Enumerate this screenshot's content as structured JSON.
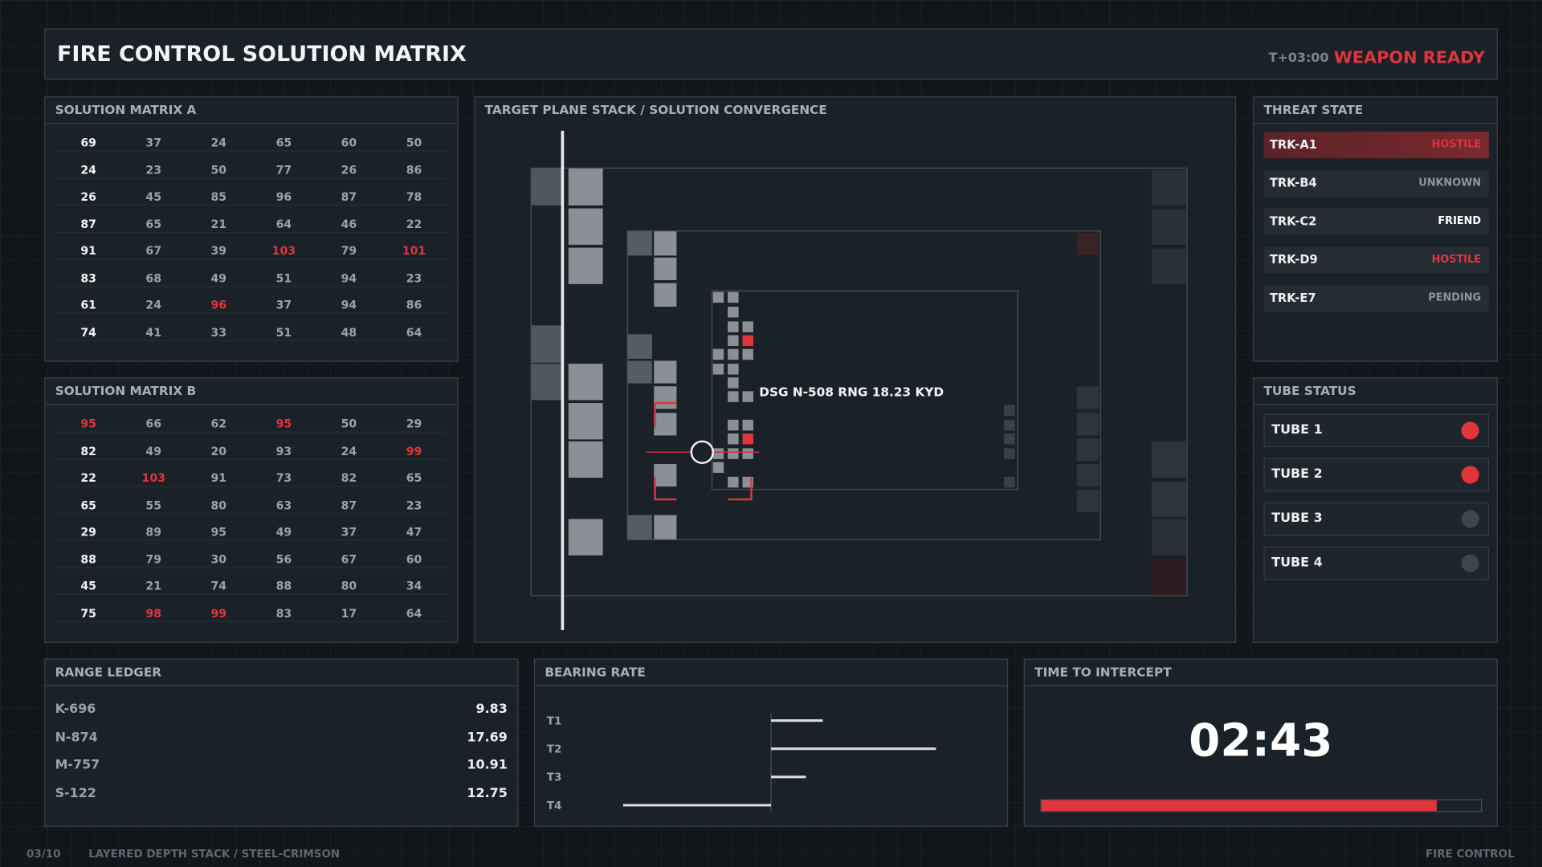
{
  "header": {
    "title": "FIRE CONTROL SOLUTION MATRIX",
    "clock": "T+03:00",
    "status": "WEAPON READY"
  },
  "matrix_a": {
    "title": "SOLUTION MATRIX A",
    "rows": [
      [
        69,
        37,
        24,
        65,
        60,
        50
      ],
      [
        24,
        23,
        50,
        77,
        26,
        86
      ],
      [
        26,
        45,
        85,
        96,
        87,
        78
      ],
      [
        87,
        65,
        21,
        64,
        46,
        22
      ],
      [
        91,
        67,
        39,
        103,
        79,
        101
      ],
      [
        83,
        68,
        49,
        51,
        94,
        23
      ],
      [
        61,
        24,
        96,
        37,
        94,
        86
      ],
      [
        74,
        41,
        33,
        51,
        48,
        64
      ]
    ],
    "highlighted": [
      [
        4,
        3
      ],
      [
        4,
        5
      ],
      [
        6,
        2
      ]
    ]
  },
  "matrix_b": {
    "title": "SOLUTION MATRIX B",
    "rows": [
      [
        95,
        66,
        62,
        95,
        50,
        29
      ],
      [
        82,
        49,
        20,
        93,
        24,
        99
      ],
      [
        22,
        103,
        91,
        73,
        82,
        65
      ],
      [
        65,
        55,
        80,
        63,
        87,
        23
      ],
      [
        29,
        89,
        95,
        49,
        37,
        47
      ],
      [
        88,
        79,
        30,
        56,
        67,
        60
      ],
      [
        45,
        21,
        74,
        88,
        80,
        34
      ],
      [
        75,
        98,
        99,
        83,
        17,
        64
      ]
    ],
    "highlighted": [
      [
        0,
        0
      ],
      [
        0,
        3
      ],
      [
        1,
        5
      ],
      [
        2,
        1
      ],
      [
        7,
        1
      ],
      [
        7,
        2
      ]
    ]
  },
  "highlight_color": "#e0353a",
  "target_plane": {
    "title": "TARGET PLANE STACK / SOLUTION CONVERGENCE",
    "designation": "DSG N-508  RNG 18.23 KYD"
  },
  "threat_state": {
    "title": "THREAT STATE",
    "selected": 0,
    "tracks": [
      {
        "id": "TRK-A1",
        "state": "HOSTILE",
        "color": "#e0353a"
      },
      {
        "id": "TRK-B4",
        "state": "UNKNOWN",
        "color": "#8e969e"
      },
      {
        "id": "TRK-C2",
        "state": "FRIEND",
        "color": "#ffffff"
      },
      {
        "id": "TRK-D9",
        "state": "HOSTILE",
        "color": "#e0353a"
      },
      {
        "id": "TRK-E7",
        "state": "PENDING",
        "color": "#8e969e"
      }
    ]
  },
  "tube_status": {
    "title": "TUBE STATUS",
    "tubes": [
      {
        "name": "TUBE 1",
        "armed": true
      },
      {
        "name": "TUBE 2",
        "armed": true
      },
      {
        "name": "TUBE 3",
        "armed": false
      },
      {
        "name": "TUBE 4",
        "armed": false
      }
    ]
  },
  "range_ledger": {
    "title": "RANGE LEDGER",
    "rows": [
      {
        "id": "K-696",
        "value": 9.83
      },
      {
        "id": "N-874",
        "value": 17.69
      },
      {
        "id": "M-757",
        "value": 10.91
      },
      {
        "id": "S-122",
        "value": 12.75
      }
    ]
  },
  "bearing_rate": {
    "title": "BEARING RATE",
    "xlim": [
      -240,
      240
    ],
    "rows": [
      {
        "label": "T1",
        "value": 55
      },
      {
        "label": "T2",
        "value": 175
      },
      {
        "label": "T3",
        "value": 37
      },
      {
        "label": "T4",
        "value": -157
      }
    ]
  },
  "time_to_intercept": {
    "title": "TIME TO INTERCEPT",
    "time": "02:43",
    "progress": 0.9
  },
  "footer": {
    "page": "03/10",
    "caption": "LAYERED DEPTH STACK / STEEL-CRIMSON",
    "system": "FIRE CONTROL"
  }
}
